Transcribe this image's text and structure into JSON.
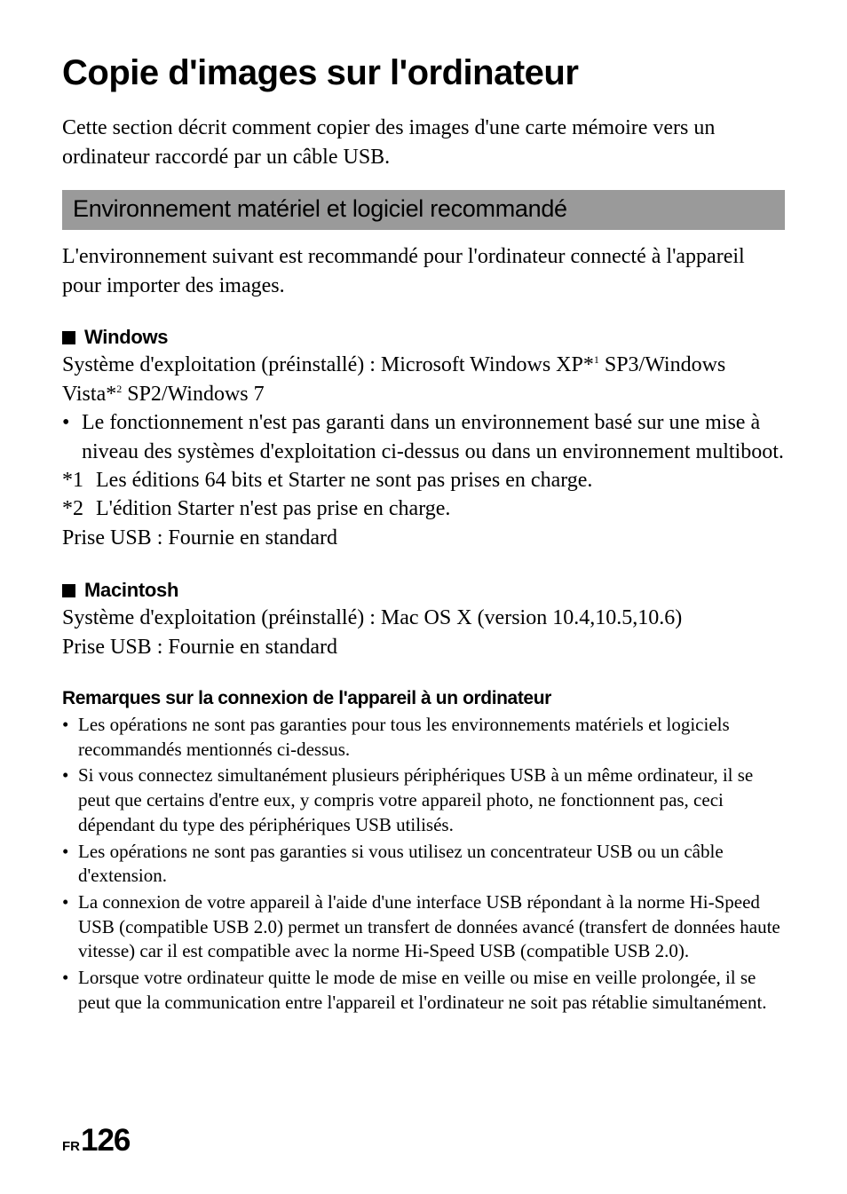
{
  "colors": {
    "page_bg": "#ffffff",
    "text": "#000000",
    "section_bar_bg": "#9a9a9a",
    "square_fill": "#000000"
  },
  "typography": {
    "title": {
      "family": "Arial",
      "weight": 900,
      "size_pt": 30
    },
    "section_bar": {
      "family": "Arial",
      "weight": 400,
      "size_pt": 20
    },
    "subhead": {
      "family": "Arial",
      "weight": 700,
      "size_pt": 17
    },
    "body": {
      "family": "Times New Roman",
      "weight": 400,
      "size_pt": 18
    },
    "remarks_head": {
      "family": "Arial",
      "weight": 700,
      "size_pt": 16
    },
    "remarks_body": {
      "family": "Times New Roman",
      "weight": 400,
      "size_pt": 16
    },
    "footer_prefix": {
      "family": "Arial",
      "weight": 900,
      "size_pt": 11
    },
    "footer_num": {
      "family": "Arial",
      "weight": 900,
      "size_pt": 26
    }
  },
  "title": "Copie d'images sur l'ordinateur",
  "intro": "Cette section décrit comment copier des images d'une carte mémoire vers un ordinateur raccordé par un câble USB.",
  "section_bar": "Environnement matériel et logiciel recommandé",
  "env_intro": "L'environnement suivant est recommandé pour l'ordinateur connecté à l'appareil pour importer des images.",
  "windows": {
    "heading": "Windows",
    "os_line_before_sup1": "Système d'exploitation (préinstallé) : Microsoft Windows XP*",
    "sup1": "1",
    "os_line_mid": " SP3/Windows Vista*",
    "sup2": "2",
    "os_line_after": " SP2/Windows 7",
    "bullet": "Le fonctionnement n'est pas garanti dans un environnement basé sur une mise à niveau des systèmes d'exploitation ci-dessus ou dans un environnement multiboot.",
    "note1_mark": "*1",
    "note1_text": "Les éditions 64 bits et Starter ne sont pas prises en charge.",
    "note2_mark": "*2",
    "note2_text": "L'édition Starter n'est pas prise en charge.",
    "usb": "Prise USB : Fournie en standard"
  },
  "mac": {
    "heading": "Macintosh",
    "os_line": "Système d'exploitation (préinstallé) : Mac OS X (version 10.4,10.5,10.6)",
    "usb": "Prise USB : Fournie en standard"
  },
  "remarks": {
    "heading": "Remarques sur la connexion de l'appareil à un ordinateur",
    "items": [
      "Les opérations ne sont pas garanties pour tous les environnements matériels et logiciels recommandés mentionnés ci-dessus.",
      "Si vous connectez simultanément plusieurs périphériques USB à un même ordinateur, il se peut que certains d'entre eux, y compris votre appareil photo, ne fonctionnent pas, ceci dépendant du type des périphériques USB utilisés.",
      "Les opérations ne sont pas garanties si vous utilisez un concentrateur USB ou un câble d'extension.",
      "La connexion de votre appareil à l'aide d'une interface USB répondant à la norme Hi-Speed USB (compatible USB 2.0) permet un transfert de données avancé (transfert de données haute vitesse) car il est compatible avec la norme Hi-Speed USB (compatible USB 2.0).",
      "Lorsque votre ordinateur quitte le mode de mise en veille ou mise en veille prolongée, il se peut que la communication entre l'appareil et l'ordinateur ne soit pas rétablie simultanément."
    ]
  },
  "footer": {
    "prefix": "FR",
    "page_number": "126"
  },
  "bullet_glyph": "•"
}
